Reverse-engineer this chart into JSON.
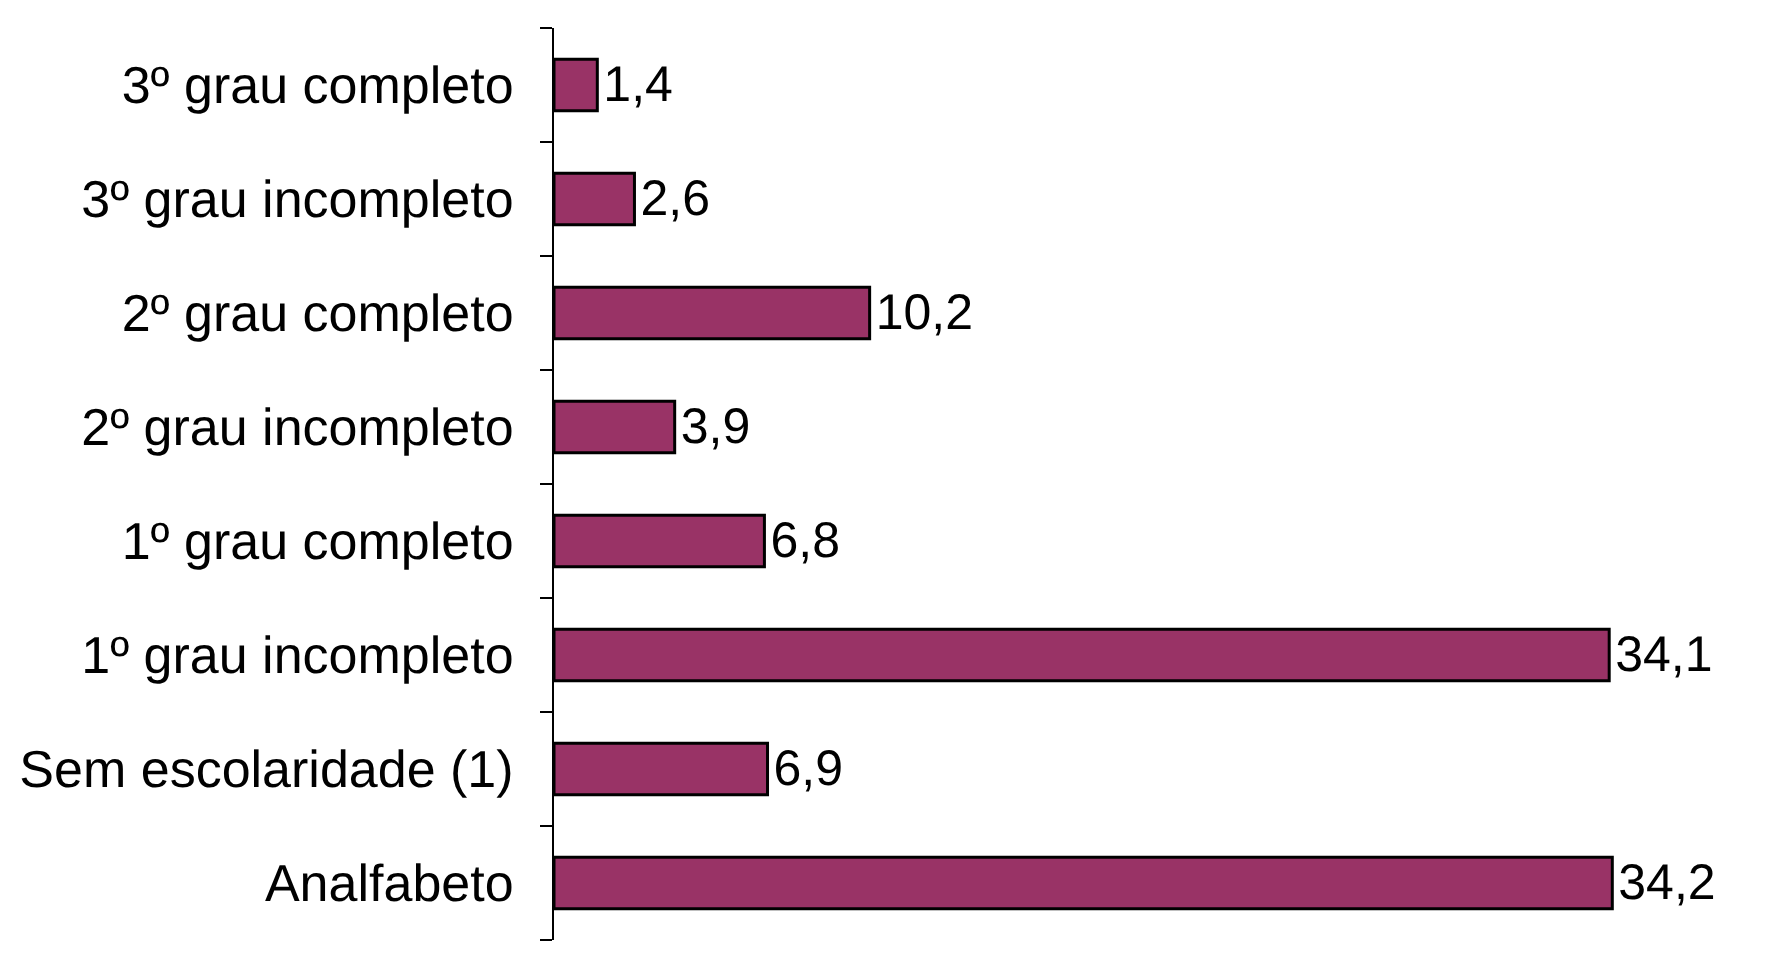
{
  "chart_data": {
    "type": "bar",
    "orientation": "horizontal",
    "categories": [
      "3º grau completo",
      "3º grau incompleto",
      "2º grau completo",
      "2º grau incompleto",
      "1º grau completo",
      "1º grau incompleto",
      "Sem escolaridade (1)",
      "Analfabeto"
    ],
    "values": [
      1.4,
      2.6,
      10.2,
      3.9,
      6.8,
      34.1,
      6.9,
      34.2
    ],
    "value_labels": [
      "1,4",
      "2,6",
      "10,2",
      "3,9",
      "6,8",
      "34,1",
      "6,9",
      "34,2"
    ],
    "color": "#993366",
    "tick_labels": "y"
  }
}
